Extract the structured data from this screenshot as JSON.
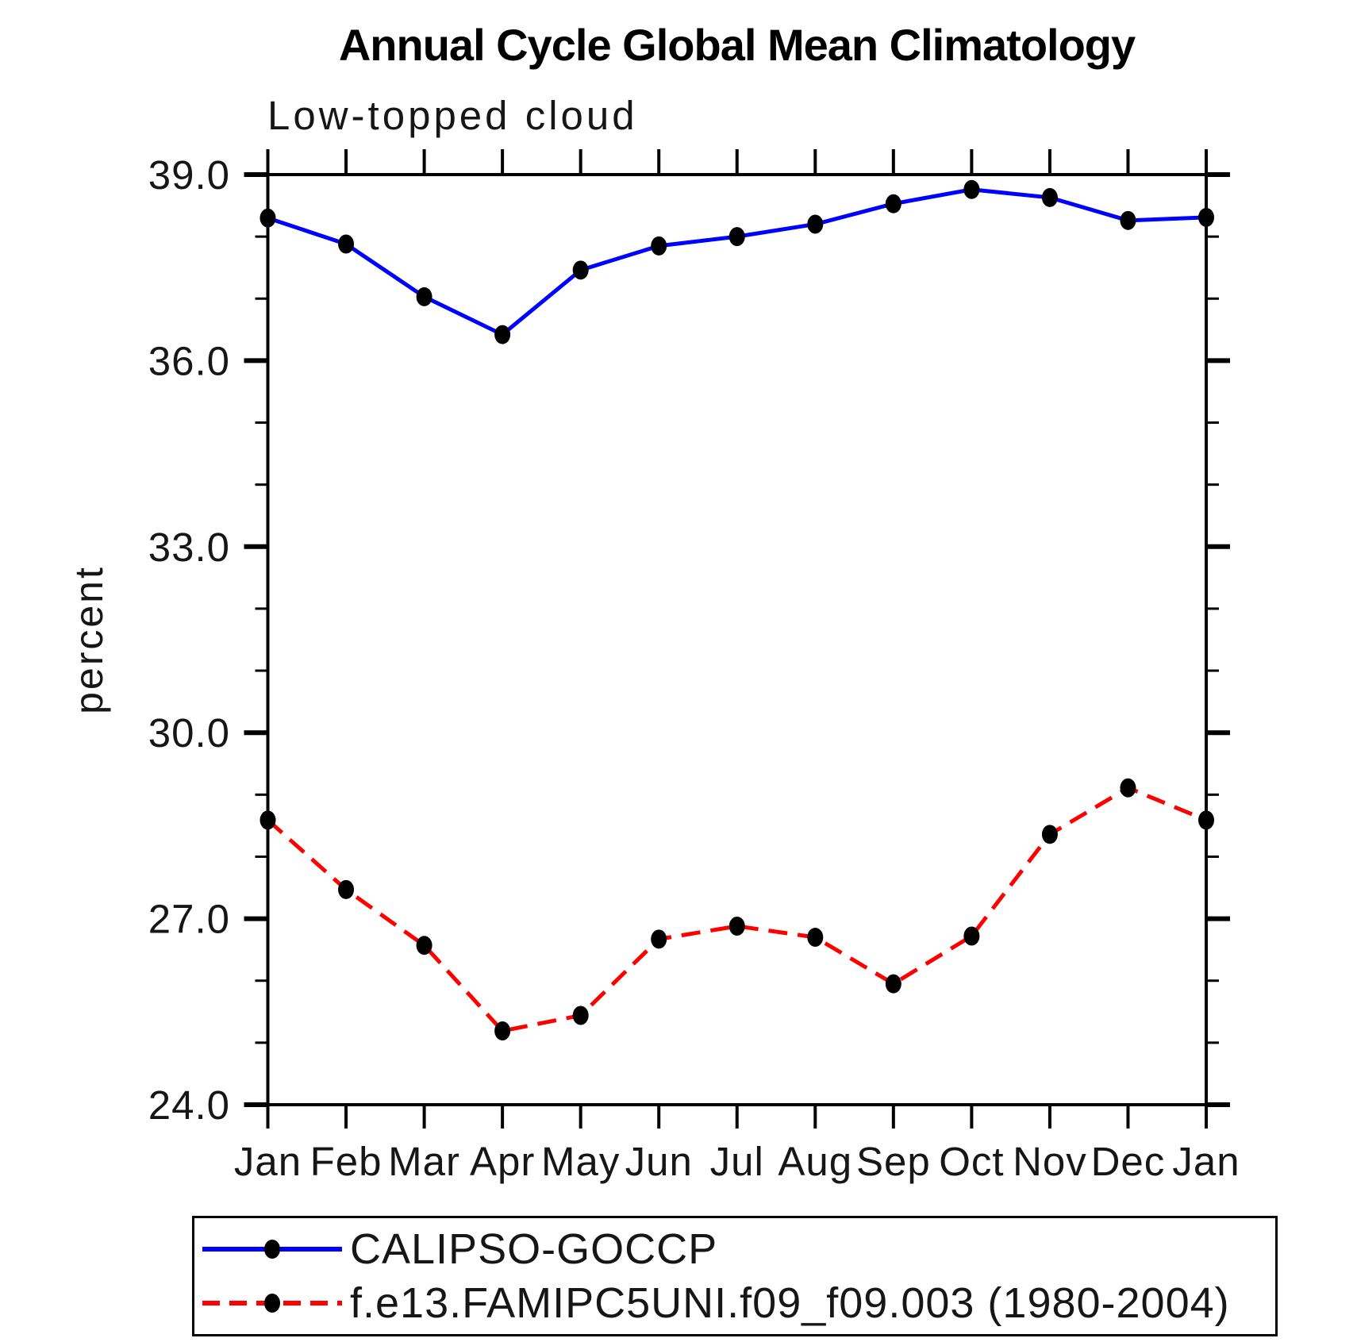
{
  "chart_data": {
    "type": "line",
    "title": "Annual Cycle Global Mean Climatology",
    "subtitle": "Low-topped cloud",
    "ylabel": "percent",
    "xlabel": "",
    "categories": [
      "Jan",
      "Feb",
      "Mar",
      "Apr",
      "May",
      "Jun",
      "Jul",
      "Aug",
      "Sep",
      "Oct",
      "Nov",
      "Dec",
      "Jan"
    ],
    "ylim": [
      24.0,
      39.0
    ],
    "y_major_ticks": [
      24.0,
      27.0,
      30.0,
      33.0,
      36.0,
      39.0
    ],
    "y_tick_labels": [
      "24.0",
      "27.0",
      "30.0",
      "33.0",
      "36.0",
      "39.0"
    ],
    "y_minor_step": 1.0,
    "grid": false,
    "legend_position": "bottom-left-box",
    "series": [
      {
        "name": "CALIPSO-GOCCP",
        "color": "#0000FF",
        "line_style": "solid",
        "marker": "filled-circle",
        "marker_color": "#000000",
        "values": [
          38.3,
          37.88,
          37.03,
          36.42,
          37.46,
          37.85,
          38.0,
          38.2,
          38.53,
          38.76,
          38.63,
          38.26,
          38.31
        ]
      },
      {
        "name": "f.e13.FAMIPC5UNI.f09_f09.003 (1980-2004)",
        "color": "#FF0000",
        "line_style": "dashed",
        "marker": "filled-circle",
        "marker_color": "#000000",
        "values": [
          28.59,
          27.47,
          26.57,
          25.19,
          25.44,
          26.67,
          26.88,
          26.7,
          25.95,
          26.72,
          28.36,
          29.11,
          28.59
        ]
      }
    ],
    "colors": {
      "axis": "#000000",
      "background": "#FFFFFF"
    }
  }
}
